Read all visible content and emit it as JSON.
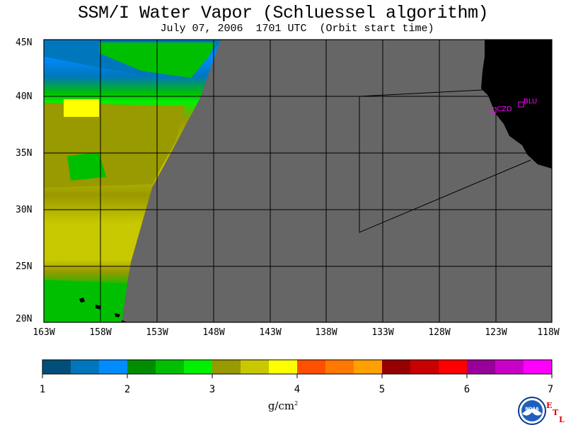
{
  "title": "SSM/I Water Vapor (Schluessel algorithm)",
  "subtitle": "July 07, 2006  1701 UTC  (Orbit start time)",
  "map": {
    "lat_labels": [
      "45N",
      "40N",
      "35N",
      "30N",
      "25N",
      "20N"
    ],
    "lon_labels": [
      "163W",
      "158W",
      "153W",
      "148W",
      "143W",
      "138W",
      "133W",
      "128W",
      "123W",
      "118W"
    ],
    "stations": [
      {
        "code": "CZD",
        "lat": 38.6,
        "lon": -123.3
      },
      {
        "code": "BLU",
        "lat": 39.3,
        "lon": -120.7
      }
    ],
    "colors": {
      "no_data": "#666666",
      "land": "#000000",
      "station": "#ff00ff"
    }
  },
  "colorbar": {
    "units": "g/cm",
    "units_exp": "2",
    "tick_labels": [
      "1",
      "2",
      "3",
      "4",
      "5",
      "6",
      "7"
    ],
    "colors": [
      "#004f7a",
      "#0077bd",
      "#008cff",
      "#008c00",
      "#00bf00",
      "#00f000",
      "#999900",
      "#c8c800",
      "#ffff00",
      "#ff5000",
      "#ff7800",
      "#ffa000",
      "#960000",
      "#c80000",
      "#ff0000",
      "#990099",
      "#c800c8",
      "#ff00ff"
    ]
  },
  "logo": {
    "text": "NOAA",
    "letters": [
      "E",
      "T",
      "L"
    ]
  }
}
